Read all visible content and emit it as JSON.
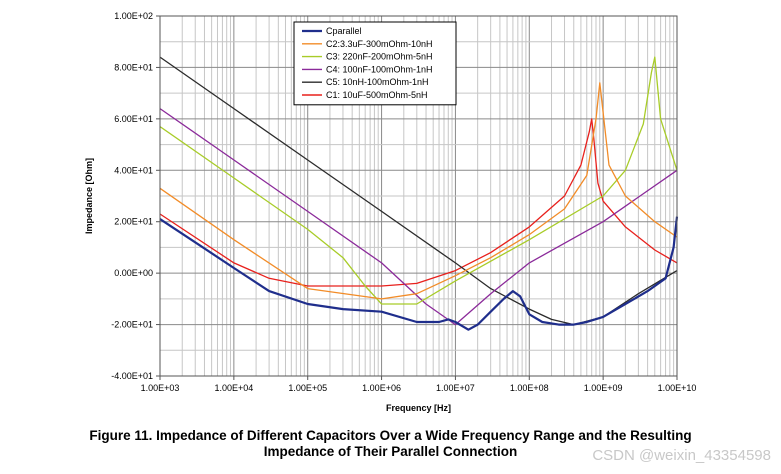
{
  "chart_data": {
    "type": "line",
    "xscale": "log",
    "xlim": [
      1000,
      10000000000
    ],
    "ylim": [
      -40,
      100
    ],
    "xlabel": "Frequency [Hz]",
    "ylabel": "Impedance [Ohm]",
    "x_ticks": [
      1000,
      10000,
      100000,
      1000000,
      10000000,
      100000000,
      1000000000,
      10000000000
    ],
    "x_tick_labels": [
      "1.00E+03",
      "1.00E+04",
      "1.00E+05",
      "1.00E+06",
      "1.00E+07",
      "1.00E+08",
      "1.00E+09",
      "1.00E+10"
    ],
    "y_ticks": [
      -40,
      -20,
      0,
      20,
      40,
      60,
      80,
      100
    ],
    "y_tick_labels": [
      "-4.00E+01",
      "-2.00E+01",
      "0.00E+00",
      "2.00E+01",
      "4.00E+01",
      "6.00E+01",
      "8.00E+01",
      "1.00E+02"
    ],
    "grid": true,
    "legend_position": "top-center",
    "series": [
      {
        "name": "Cparallel",
        "color": "#1f2e8c",
        "bold": true,
        "x": [
          1000,
          3000,
          10000,
          30000,
          100000,
          300000,
          1000000,
          3000000,
          6000000,
          8000000,
          10000000,
          15000000,
          20000000,
          30000000,
          45000000,
          60000000,
          75000000,
          100000000,
          150000000,
          250000000,
          400000000,
          600000000,
          1000000000,
          2000000000,
          4000000000,
          7000000000,
          9000000000,
          10000000000
        ],
        "y": [
          21,
          12,
          2,
          -7,
          -12,
          -14,
          -15,
          -19,
          -19,
          -18,
          -19,
          -22,
          -20,
          -15,
          -10,
          -7,
          -9,
          -16,
          -19,
          -20,
          -20,
          -19,
          -17,
          -12,
          -7,
          -2,
          10,
          22
        ]
      },
      {
        "name": "C2:3.3uF-300mOhm-10nH",
        "color": "#f28c28",
        "x": [
          1000,
          10000,
          100000,
          1000000,
          3000000,
          10000000,
          30000000,
          100000000,
          300000000,
          600000000,
          800000000,
          900000000,
          1200000000,
          2000000000,
          5000000000,
          10000000000
        ],
        "y": [
          33,
          13,
          -6,
          -10,
          -8,
          -1,
          6,
          15,
          25,
          38,
          60,
          74,
          42,
          30,
          20,
          14
        ]
      },
      {
        "name": "C3: 220nF-200mOhm-5nH",
        "color": "#a8cc28",
        "x": [
          1000,
          10000,
          100000,
          300000,
          600000,
          1000000,
          3000000,
          10000000,
          100000000,
          1000000000,
          2000000000,
          3500000000,
          4500000000,
          5000000000,
          6000000000,
          10000000000
        ],
        "y": [
          57,
          37,
          17,
          6,
          -5,
          -12,
          -12,
          -3,
          13,
          30,
          40,
          58,
          78,
          84,
          60,
          40
        ]
      },
      {
        "name": "C4: 100nF-100mOhm-1nH",
        "color": "#8b2a9a",
        "x": [
          1000,
          10000,
          100000,
          1000000,
          4000000,
          10000000,
          30000000,
          100000000,
          1000000000,
          10000000000
        ],
        "y": [
          64,
          44,
          24,
          4,
          -12,
          -20,
          -8,
          4,
          20,
          40
        ]
      },
      {
        "name": "C5: 10nH-100mOhm-1nH",
        "color": "#2b2b2b",
        "x": [
          1000,
          10000,
          100000,
          1000000,
          10000000,
          30000000,
          100000000,
          200000000,
          400000000,
          1000000000,
          3000000000,
          10000000000
        ],
        "y": [
          84,
          64,
          44,
          24,
          4,
          -6,
          -14,
          -18,
          -20,
          -17,
          -8,
          1
        ]
      },
      {
        "name": "C1: 10uF-500mOhm-5nH",
        "color": "#e8201c",
        "x": [
          1000,
          10000,
          30000,
          100000,
          300000,
          1000000,
          3000000,
          10000000,
          30000000,
          100000000,
          300000000,
          500000000,
          650000000,
          700000000,
          750000000,
          850000000,
          1000000000,
          2000000000,
          5000000000,
          10000000000
        ],
        "y": [
          23,
          4,
          -2,
          -5,
          -5,
          -5,
          -4,
          1,
          8,
          18,
          30,
          42,
          55,
          60,
          52,
          35,
          28,
          18,
          9,
          4
        ]
      }
    ]
  },
  "caption": {
    "line1": "Figure 11. Impedance of Different Capacitors Over a Wide Frequency Range and the Resulting",
    "line2": "Impedance of Their Parallel Connection"
  },
  "watermark": "CSDN @weixin_43354598"
}
